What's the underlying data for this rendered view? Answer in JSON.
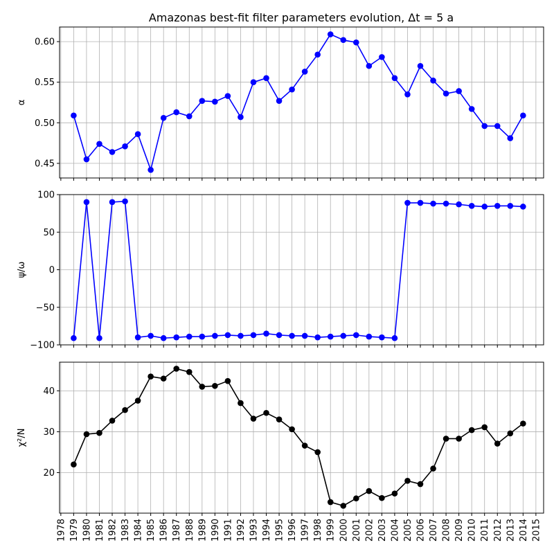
{
  "figure": {
    "title": "Amazonas best-fit filter parameters evolution, Δt = 5 a"
  },
  "chart_data": [
    {
      "type": "line",
      "ylabel": "α",
      "x_ticks": [
        1978,
        1979,
        1980,
        1981,
        1982,
        1983,
        1984,
        1985,
        1986,
        1987,
        1988,
        1989,
        1990,
        1991,
        1992,
        1993,
        1994,
        1995,
        1996,
        1997,
        1998,
        1999,
        2000,
        2001,
        2002,
        2003,
        2004,
        2005,
        2006,
        2007,
        2008,
        2009,
        2010,
        2011,
        2012,
        2013,
        2014,
        2015
      ],
      "xlim": [
        1977.9,
        2015.6
      ],
      "ylim": [
        0.432,
        0.618
      ],
      "y_ticks": [
        0.45,
        0.5,
        0.55,
        0.6
      ],
      "y_tick_labels": [
        "0.45",
        "0.50",
        "0.55",
        "0.60"
      ],
      "grid": true,
      "color": "#0000ff",
      "series": [
        {
          "x": [
            1979,
            1980,
            1981,
            1982,
            1983,
            1984,
            1985,
            1986,
            1987,
            1988,
            1989,
            1990,
            1991,
            1992,
            1993,
            1994,
            1995,
            1996,
            1997,
            1998,
            1999,
            2000,
            2001,
            2002,
            2003,
            2004,
            2005,
            2006,
            2007,
            2008,
            2009,
            2010,
            2011,
            2012,
            2013,
            2014
          ],
          "values": [
            0.509,
            0.455,
            0.474,
            0.464,
            0.471,
            0.486,
            0.442,
            0.506,
            0.513,
            0.508,
            0.527,
            0.526,
            0.533,
            0.507,
            0.55,
            0.555,
            0.527,
            0.541,
            0.563,
            0.584,
            0.609,
            0.602,
            0.599,
            0.57,
            0.581,
            0.555,
            0.535,
            0.57,
            0.552,
            0.536,
            0.539,
            0.517,
            0.496,
            0.496,
            0.481,
            0.509
          ]
        }
      ]
    },
    {
      "type": "line",
      "ylabel": "ψ/ω",
      "x_ticks": [
        1978,
        1979,
        1980,
        1981,
        1982,
        1983,
        1984,
        1985,
        1986,
        1987,
        1988,
        1989,
        1990,
        1991,
        1992,
        1993,
        1994,
        1995,
        1996,
        1997,
        1998,
        1999,
        2000,
        2001,
        2002,
        2003,
        2004,
        2005,
        2006,
        2007,
        2008,
        2009,
        2010,
        2011,
        2012,
        2013,
        2014,
        2015
      ],
      "xlim": [
        1977.9,
        2015.6
      ],
      "ylim": [
        -100,
        100
      ],
      "y_ticks": [
        -100,
        -50,
        0,
        50,
        100
      ],
      "y_tick_labels": [
        "−100",
        "−50",
        "0",
        "50",
        "100"
      ],
      "grid": true,
      "color": "#0000ff",
      "series": [
        {
          "x": [
            1979,
            1980,
            1981,
            1982,
            1983,
            1984,
            1985,
            1986,
            1987,
            1988,
            1989,
            1990,
            1991,
            1992,
            1993,
            1994,
            1995,
            1996,
            1997,
            1998,
            1999,
            2000,
            2001,
            2002,
            2003,
            2004,
            2005,
            2006,
            2007,
            2008,
            2009,
            2010,
            2011,
            2012,
            2013,
            2014
          ],
          "values": [
            -91,
            90,
            -91,
            90,
            91,
            -90,
            -88,
            -91,
            -90,
            -89,
            -89,
            -88,
            -87,
            -88,
            -87,
            -85,
            -87,
            -88,
            -88,
            -90,
            -89,
            -88,
            -87,
            -89,
            -90,
            -91,
            89,
            89,
            88,
            88,
            87,
            85,
            84,
            85,
            85,
            84
          ]
        }
      ]
    },
    {
      "type": "line",
      "ylabel": "χ²/N",
      "x_ticks": [
        1978,
        1979,
        1980,
        1981,
        1982,
        1983,
        1984,
        1985,
        1986,
        1987,
        1988,
        1989,
        1990,
        1991,
        1992,
        1993,
        1994,
        1995,
        1996,
        1997,
        1998,
        1999,
        2000,
        2001,
        2002,
        2003,
        2004,
        2005,
        2006,
        2007,
        2008,
        2009,
        2010,
        2011,
        2012,
        2013,
        2014,
        2015
      ],
      "xlim": [
        1977.9,
        2015.6
      ],
      "ylim": [
        10.1,
        47.0
      ],
      "y_ticks": [
        20,
        30,
        40
      ],
      "y_tick_labels": [
        "20",
        "30",
        "40"
      ],
      "grid": true,
      "color": "#000000",
      "series": [
        {
          "x": [
            1979,
            1980,
            1981,
            1982,
            1983,
            1984,
            1985,
            1986,
            1987,
            1988,
            1989,
            1990,
            1991,
            1992,
            1993,
            1994,
            1995,
            1996,
            1997,
            1998,
            1999,
            2000,
            2001,
            2002,
            2003,
            2004,
            2005,
            2006,
            2007,
            2008,
            2009,
            2010,
            2011,
            2012,
            2013,
            2014
          ],
          "values": [
            22.0,
            29.4,
            29.7,
            32.7,
            35.3,
            37.6,
            43.5,
            43.0,
            45.4,
            44.6,
            41.0,
            41.2,
            42.4,
            37.0,
            33.2,
            34.6,
            33.0,
            30.6,
            26.6,
            25.0,
            12.8,
            11.9,
            13.7,
            15.5,
            13.8,
            14.9,
            18.0,
            17.2,
            21.0,
            28.3,
            28.3,
            30.4,
            31.1,
            27.1,
            29.6,
            32.0
          ]
        }
      ]
    }
  ]
}
